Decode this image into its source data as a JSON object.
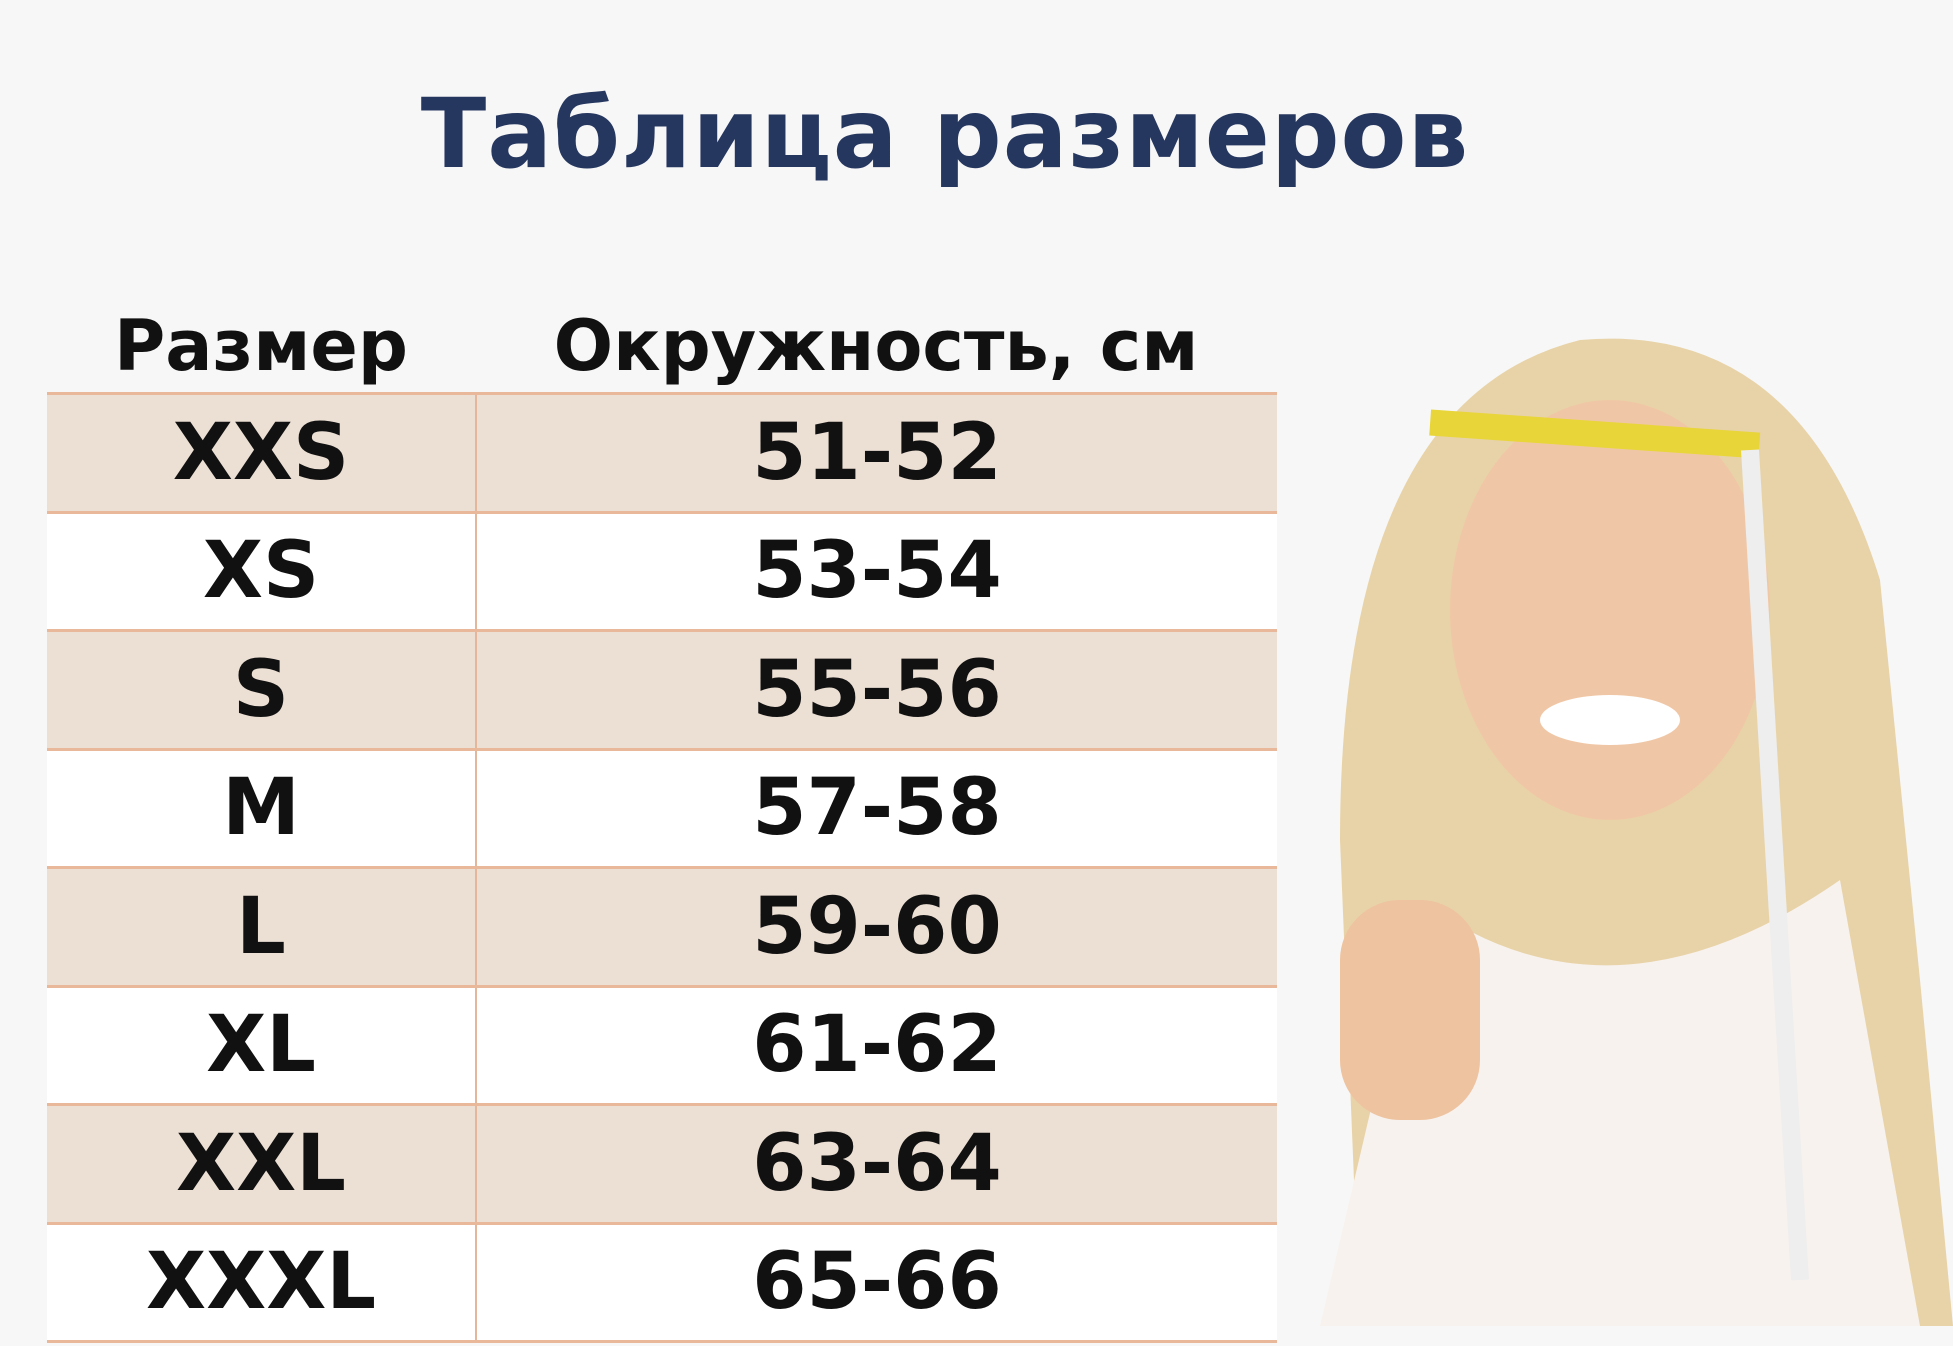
{
  "title": "Таблица размеров",
  "table": {
    "headers": [
      "Размер",
      "Окружность, см"
    ],
    "rows": [
      [
        "XXS",
        "51-52"
      ],
      [
        "XS",
        "53-54"
      ],
      [
        "S",
        "55-56"
      ],
      [
        "M",
        "57-58"
      ],
      [
        "L",
        "59-60"
      ],
      [
        "XL",
        "61-62"
      ],
      [
        "XXL",
        "63-64"
      ],
      [
        "XXXL",
        "65-66"
      ]
    ]
  },
  "colors": {
    "title": "#26375f",
    "stripe": "#ecdfd4",
    "border": "#e9b89a"
  }
}
